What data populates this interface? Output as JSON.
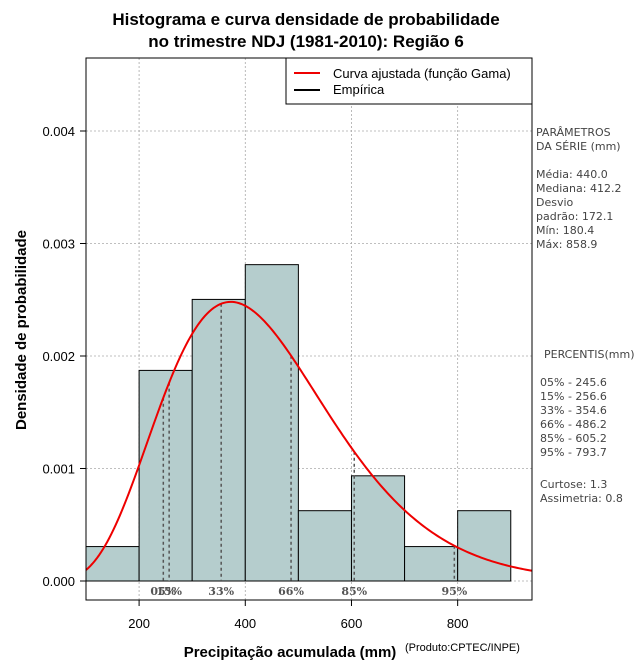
{
  "chart_data": {
    "type": "histogram",
    "title_line1": "Histograma e curva densidade de probabilidade",
    "title_line2": "no trimestre NDJ (1981-2010): Região 6",
    "xlabel": "Precipitação acumulada (mm)",
    "ylabel": "Densidade de probabilidade",
    "credit": "(Produto:CPTEC/INPE)",
    "xlim": [
      100,
      940
    ],
    "ylim": [
      0,
      0.0047
    ],
    "x_ticks": [
      200,
      400,
      600,
      800
    ],
    "x_tick_labels": [
      "200",
      "400",
      "600",
      "800"
    ],
    "y_ticks": [
      0,
      0.001,
      0.002,
      0.003,
      0.004
    ],
    "y_tick_labels": [
      "0.000",
      "0.001",
      "0.002",
      "0.003",
      "0.004"
    ],
    "grid": true,
    "bins": [
      {
        "start": 100,
        "end": 200,
        "density": 0.000306
      },
      {
        "start": 200,
        "end": 300,
        "density": 0.001872
      },
      {
        "start": 300,
        "end": 400,
        "density": 0.002503
      },
      {
        "start": 400,
        "end": 500,
        "density": 0.002812
      },
      {
        "start": 500,
        "end": 600,
        "density": 0.000625
      },
      {
        "start": 600,
        "end": 700,
        "density": 0.000935
      },
      {
        "start": 700,
        "end": 800,
        "density": 0.000306
      },
      {
        "start": 800,
        "end": 900,
        "density": 0.000625
      }
    ],
    "curve": {
      "name": "Curva ajustada (função Gama)",
      "distribution": "gamma",
      "mean": 440.0,
      "sd": 172.1,
      "color": "#ee0000"
    },
    "legend": [
      {
        "label": "Curva ajustada (função Gama)",
        "color": "#ee0000"
      },
      {
        "label": "Empírica",
        "color": "#000000"
      }
    ],
    "percentile_lines": [
      {
        "label": "05%",
        "x": 245.6
      },
      {
        "label": "15%",
        "x": 256.6
      },
      {
        "label": "33%",
        "x": 354.6
      },
      {
        "label": "66%",
        "x": 486.2
      },
      {
        "label": "85%",
        "x": 605.2
      },
      {
        "label": "95%",
        "x": 793.7
      }
    ],
    "bar_color": "#b5cdcd"
  },
  "side_panel": {
    "params_heading_1": "PARÂMETROS",
    "params_heading_2": " DA SÉRIE (mm)",
    "params": [
      "Média:  440.0",
      "Mediana:  412.2",
      "Desvio",
      "padrão:  172.1",
      "Mín:  180.4",
      "Máx:  858.9"
    ],
    "percentis_heading": "PERCENTIS(mm)",
    "percentis": [
      "05% -   245.6",
      "15% -   256.6",
      "33% -   354.6",
      "66% -   486.2",
      "85% -   605.2",
      "95% -   793.7"
    ],
    "moments": [
      "Curtose:  1.3",
      "Assimetria:  0.8"
    ]
  }
}
